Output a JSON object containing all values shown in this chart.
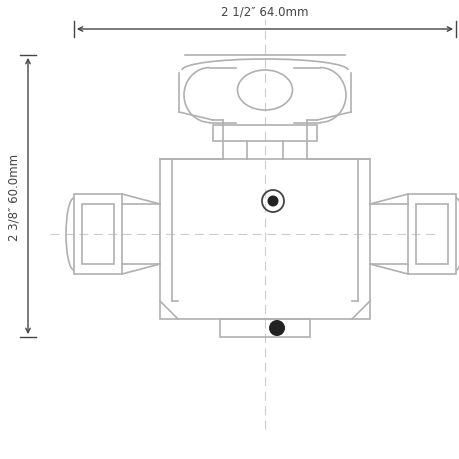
{
  "bg_color": "#ffffff",
  "lc": "#b0b0b0",
  "dc": "#444444",
  "dim_color": "#444444",
  "fig_width": 4.6,
  "fig_height": 4.6,
  "dpi": 100,
  "title_width": "2 1/2″ 64.0mm",
  "title_height": "2 3/8″ 60.0mm"
}
